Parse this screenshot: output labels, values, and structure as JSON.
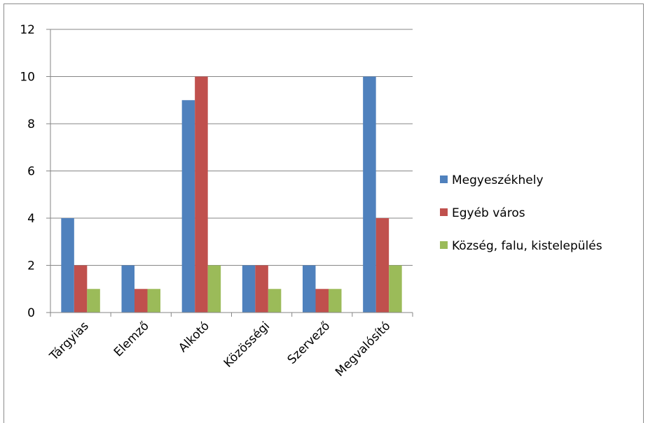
{
  "chart_data": {
    "type": "bar",
    "categories": [
      "Tárgyias",
      "Elemző",
      "Alkotó",
      "Közösségi",
      "Szervező",
      "Megvalósító"
    ],
    "series": [
      {
        "name": "Megyeszékhely",
        "color": "#4f81bd",
        "values": [
          4,
          2,
          9,
          2,
          2,
          10
        ]
      },
      {
        "name": "Egyéb város",
        "color": "#c0504d",
        "values": [
          2,
          1,
          10,
          2,
          1,
          4
        ]
      },
      {
        "name": "Község, falu, kistelepülés",
        "color": "#9bbb59",
        "values": [
          1,
          1,
          2,
          1,
          1,
          2
        ]
      }
    ],
    "ylim": [
      0,
      12
    ],
    "yticks": [
      0,
      2,
      4,
      6,
      8,
      10,
      12
    ],
    "grid": true,
    "legend": "right"
  }
}
